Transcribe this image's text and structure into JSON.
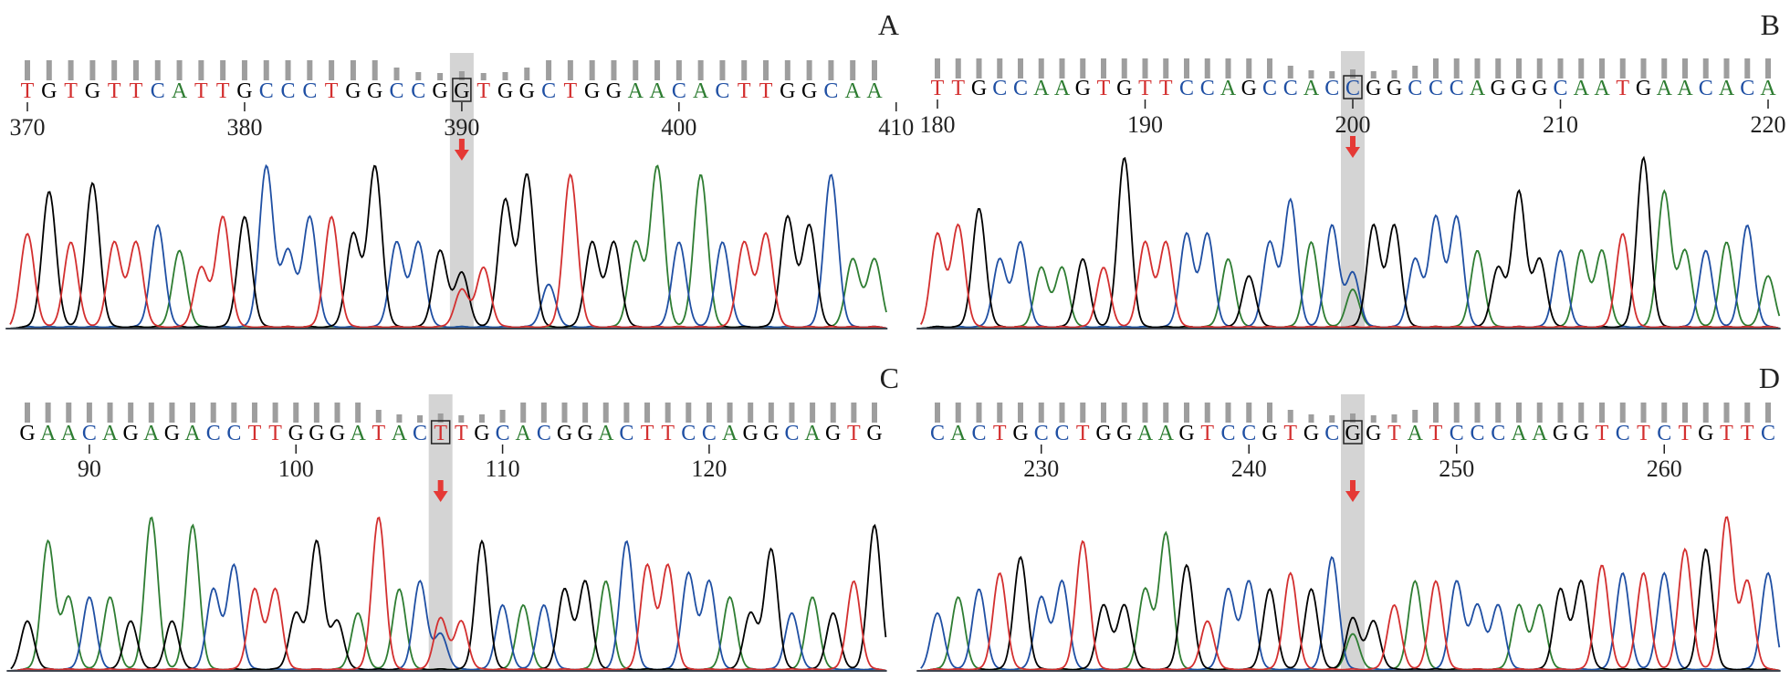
{
  "colors": {
    "A": "#2e7d32",
    "C": "#1f4fa3",
    "G": "#000000",
    "T": "#d32f2f",
    "highlight": "#d4d4d4",
    "arrow": "#e53935",
    "quality": "#9e9e9e"
  },
  "panels": [
    {
      "label": "A",
      "sequence": "TGTGTTCATTGCCCTGGCCGGTGGCTGGAACACTTGGCAA",
      "first_position": 370,
      "tick_labels": [
        "370",
        "380",
        "390",
        "400",
        "410"
      ],
      "highlight_position": 390,
      "highlight_base": "G",
      "secondary_base": "T",
      "peak_heights": [
        0.55,
        0.8,
        0.5,
        0.85,
        0.5,
        0.5,
        0.6,
        0.45,
        0.35,
        0.65,
        0.65,
        0.95,
        0.45,
        0.65,
        0.65,
        0.55,
        0.95,
        0.5,
        0.5,
        0.45,
        0.65,
        0.35,
        0.75,
        0.9,
        0.25,
        0.9,
        0.5,
        0.5,
        0.5,
        0.95,
        0.5,
        0.9,
        0.5,
        0.5,
        0.55,
        0.65,
        0.6,
        0.9,
        0.4,
        0.4
      ]
    },
    {
      "label": "B",
      "sequence": "TTGCCAAGTGTTCCAGCCACCGGCCCAGGGCAATGAACACA",
      "first_position": 180,
      "tick_labels": [
        "180",
        "190",
        "200",
        "210",
        "220"
      ],
      "highlight_position": 200,
      "highlight_base": "C",
      "secondary_base": "A",
      "peak_heights": [
        0.55,
        0.6,
        0.7,
        0.4,
        0.5,
        0.35,
        0.35,
        0.4,
        0.35,
        1.0,
        0.5,
        0.5,
        0.55,
        0.55,
        0.4,
        0.3,
        0.5,
        0.75,
        0.5,
        0.6,
        0.35,
        0.6,
        0.6,
        0.4,
        0.65,
        0.65,
        0.45,
        0.35,
        0.8,
        0.4,
        0.45,
        0.45,
        0.45,
        0.55,
        1.0,
        0.8,
        0.45,
        0.45,
        0.5,
        0.6,
        0.3
      ]
    },
    {
      "label": "C",
      "sequence": "GAACAGAGACCTTGGGATACTTGCACGGACTTCCAGGCAGTG",
      "first_position": 87,
      "tick_labels": [
        "90",
        "100",
        "110",
        "120"
      ],
      "highlight_position": 107,
      "highlight_base": "T",
      "secondary_base": "C",
      "peak_heights": [
        0.3,
        0.8,
        0.45,
        0.45,
        0.45,
        0.3,
        0.95,
        0.3,
        0.9,
        0.5,
        0.65,
        0.5,
        0.5,
        0.35,
        0.8,
        0.3,
        0.35,
        0.95,
        0.5,
        0.55,
        0.5,
        0.3,
        0.8,
        0.4,
        0.4,
        0.4,
        0.5,
        0.55,
        0.55,
        0.8,
        0.65,
        0.65,
        0.6,
        0.55,
        0.45,
        0.35,
        0.75,
        0.35,
        0.45,
        0.35,
        0.55,
        0.9
      ]
    },
    {
      "label": "D",
      "sequence": "CACTGCCTGGAAGTCCGTGCGGTATCCCAAGGTCTCTGTTC",
      "first_position": 225,
      "tick_labels": [
        "230",
        "240",
        "250",
        "260"
      ],
      "highlight_position": 245,
      "highlight_base": "G",
      "secondary_base": "A",
      "peak_heights": [
        0.35,
        0.45,
        0.5,
        0.6,
        0.7,
        0.45,
        0.55,
        0.8,
        0.4,
        0.4,
        0.5,
        0.85,
        0.65,
        0.3,
        0.5,
        0.55,
        0.5,
        0.6,
        0.5,
        0.7,
        0.5,
        0.3,
        0.4,
        0.55,
        0.55,
        0.55,
        0.4,
        0.4,
        0.4,
        0.4,
        0.5,
        0.55,
        0.65,
        0.6,
        0.6,
        0.6,
        0.75,
        0.75,
        0.95,
        0.55,
        0.6
      ]
    }
  ]
}
